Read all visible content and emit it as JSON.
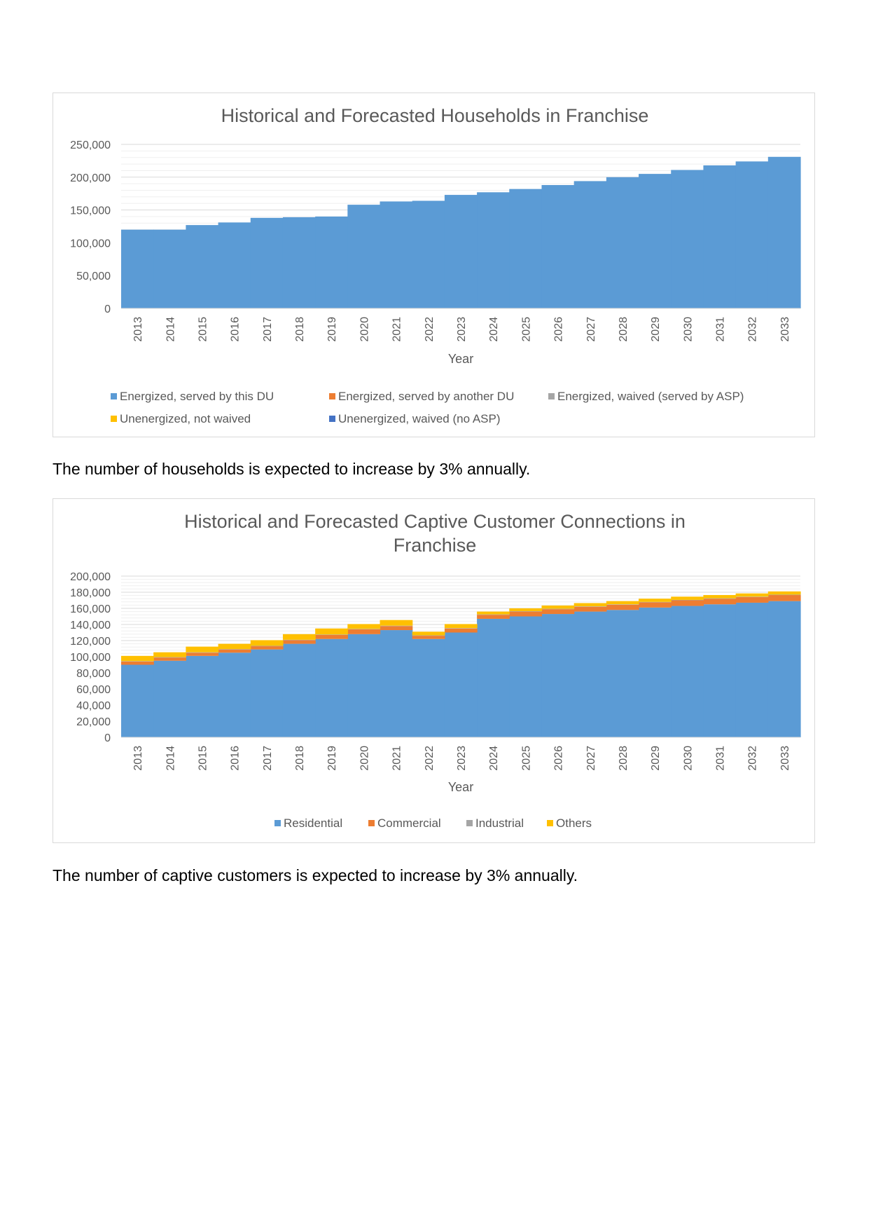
{
  "chart_data": [
    {
      "type": "area",
      "title": "Historical and Forecasted Households in Franchise",
      "xlabel": "Year",
      "ylabel": "",
      "ylim": [
        0,
        250000
      ],
      "yticks": [
        "0",
        "50,000",
        "100,000",
        "150,000",
        "200,000",
        "250,000"
      ],
      "ytick_values": [
        0,
        50000,
        100000,
        150000,
        200000,
        250000
      ],
      "grid": true,
      "legend_position": "bottom",
      "categories": [
        "2013",
        "2014",
        "2015",
        "2016",
        "2017",
        "2018",
        "2019",
        "2020",
        "2021",
        "2022",
        "2023",
        "2024",
        "2025",
        "2026",
        "2027",
        "2028",
        "2029",
        "2030",
        "2031",
        "2032",
        "2033"
      ],
      "series": [
        {
          "name": "Energized, served by this DU",
          "color": "#5b9bd5",
          "values": [
            120000,
            120000,
            127000,
            131000,
            138000,
            139000,
            140000,
            158000,
            163000,
            164000,
            173000,
            177000,
            182000,
            188000,
            194000,
            200000,
            205000,
            211000,
            218000,
            224000,
            231000
          ]
        },
        {
          "name": "Energized, served by another DU",
          "color": "#ed7d31",
          "values": [
            0,
            0,
            0,
            0,
            0,
            0,
            0,
            0,
            0,
            0,
            0,
            0,
            0,
            0,
            0,
            0,
            0,
            0,
            0,
            0,
            0
          ]
        },
        {
          "name": "Energized, waived (served by ASP)",
          "color": "#a5a5a5",
          "values": [
            0,
            0,
            0,
            0,
            0,
            0,
            0,
            0,
            0,
            0,
            0,
            0,
            0,
            0,
            0,
            0,
            0,
            0,
            0,
            0,
            0
          ]
        },
        {
          "name": "Unenergized, not waived",
          "color": "#ffc000",
          "values": [
            0,
            0,
            0,
            0,
            0,
            0,
            0,
            0,
            0,
            0,
            0,
            0,
            0,
            0,
            0,
            0,
            0,
            0,
            0,
            0,
            0
          ]
        },
        {
          "name": "Unenergized, waived (no ASP)",
          "color": "#4472c4",
          "values": [
            0,
            0,
            0,
            0,
            0,
            0,
            0,
            0,
            0,
            0,
            0,
            0,
            0,
            0,
            0,
            0,
            0,
            0,
            0,
            0,
            0
          ]
        }
      ]
    },
    {
      "type": "area",
      "title": "Historical and Forecasted Captive Customer Connections in Franchise",
      "title_lines": [
        "Historical and Forecasted Captive Customer Connections in",
        "Franchise"
      ],
      "xlabel": "Year",
      "ylabel": "",
      "ylim": [
        0,
        200000
      ],
      "yticks": [
        "0",
        "20,000",
        "40,000",
        "60,000",
        "80,000",
        "100,000",
        "120,000",
        "140,000",
        "160,000",
        "180,000",
        "200,000"
      ],
      "ytick_values": [
        0,
        20000,
        40000,
        60000,
        80000,
        100000,
        120000,
        140000,
        160000,
        180000,
        200000
      ],
      "grid": true,
      "legend_position": "bottom",
      "categories": [
        "2013",
        "2014",
        "2015",
        "2016",
        "2017",
        "2018",
        "2019",
        "2020",
        "2021",
        "2022",
        "2023",
        "2024",
        "2025",
        "2026",
        "2027",
        "2028",
        "2029",
        "2030",
        "2031",
        "2032",
        "2033"
      ],
      "series": [
        {
          "name": "Residential",
          "color": "#5b9bd5",
          "values": [
            90000,
            95000,
            101000,
            105000,
            109000,
            116000,
            122000,
            128000,
            133000,
            122000,
            130000,
            147000,
            150000,
            153000,
            156000,
            158000,
            161000,
            163000,
            165000,
            167000,
            169000
          ]
        },
        {
          "name": "Commercial",
          "color": "#ed7d31",
          "values": [
            4000,
            4000,
            4000,
            4000,
            4000,
            4500,
            5000,
            6000,
            5000,
            4000,
            5000,
            5000,
            6000,
            6000,
            6000,
            6500,
            6500,
            7000,
            7000,
            7000,
            7500
          ]
        },
        {
          "name": "Industrial",
          "color": "#a5a5a5",
          "values": [
            500,
            500,
            500,
            500,
            500,
            500,
            500,
            500,
            500,
            500,
            500,
            500,
            500,
            500,
            500,
            500,
            500,
            500,
            500,
            500,
            500
          ]
        },
        {
          "name": "Others",
          "color": "#ffc000",
          "values": [
            6500,
            6000,
            7000,
            6500,
            7000,
            7000,
            7500,
            6000,
            7000,
            4500,
            5000,
            3500,
            3500,
            4000,
            4000,
            4000,
            4000,
            4000,
            4000,
            4000,
            4000
          ]
        }
      ]
    }
  ],
  "paragraphs": {
    "p1": "The number of households is expected to increase by 3% annually.",
    "p2": "The number of captive customers is expected to increase by 3% annually."
  }
}
